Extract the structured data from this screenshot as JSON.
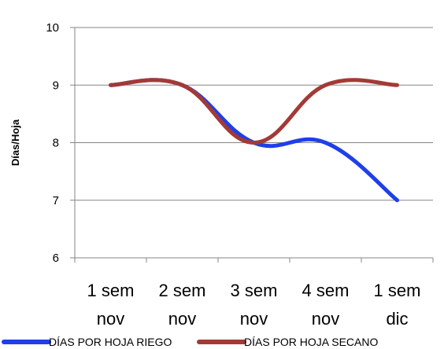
{
  "chart_data": {
    "type": "line",
    "title": "",
    "xlabel": "",
    "ylabel": "Días/Hoja",
    "ylim": [
      6,
      10
    ],
    "yticks": [
      6,
      7,
      8,
      9,
      10
    ],
    "grid": true,
    "legend_position": "bottom",
    "categories": [
      [
        "1 sem",
        "nov"
      ],
      [
        "2 sem",
        "nov"
      ],
      [
        "3 sem",
        "nov"
      ],
      [
        "4 sem",
        "nov"
      ],
      [
        "1 sem",
        "dic"
      ]
    ],
    "series": [
      {
        "name": "DÍAS POR HOJA RIEGO",
        "color": "#1f3fe8",
        "values": [
          9,
          9,
          8,
          8,
          7
        ]
      },
      {
        "name": "DÍAS POR HOJA SECANO",
        "color": "#a33a36",
        "values": [
          9,
          9,
          8,
          9,
          9
        ]
      }
    ]
  }
}
